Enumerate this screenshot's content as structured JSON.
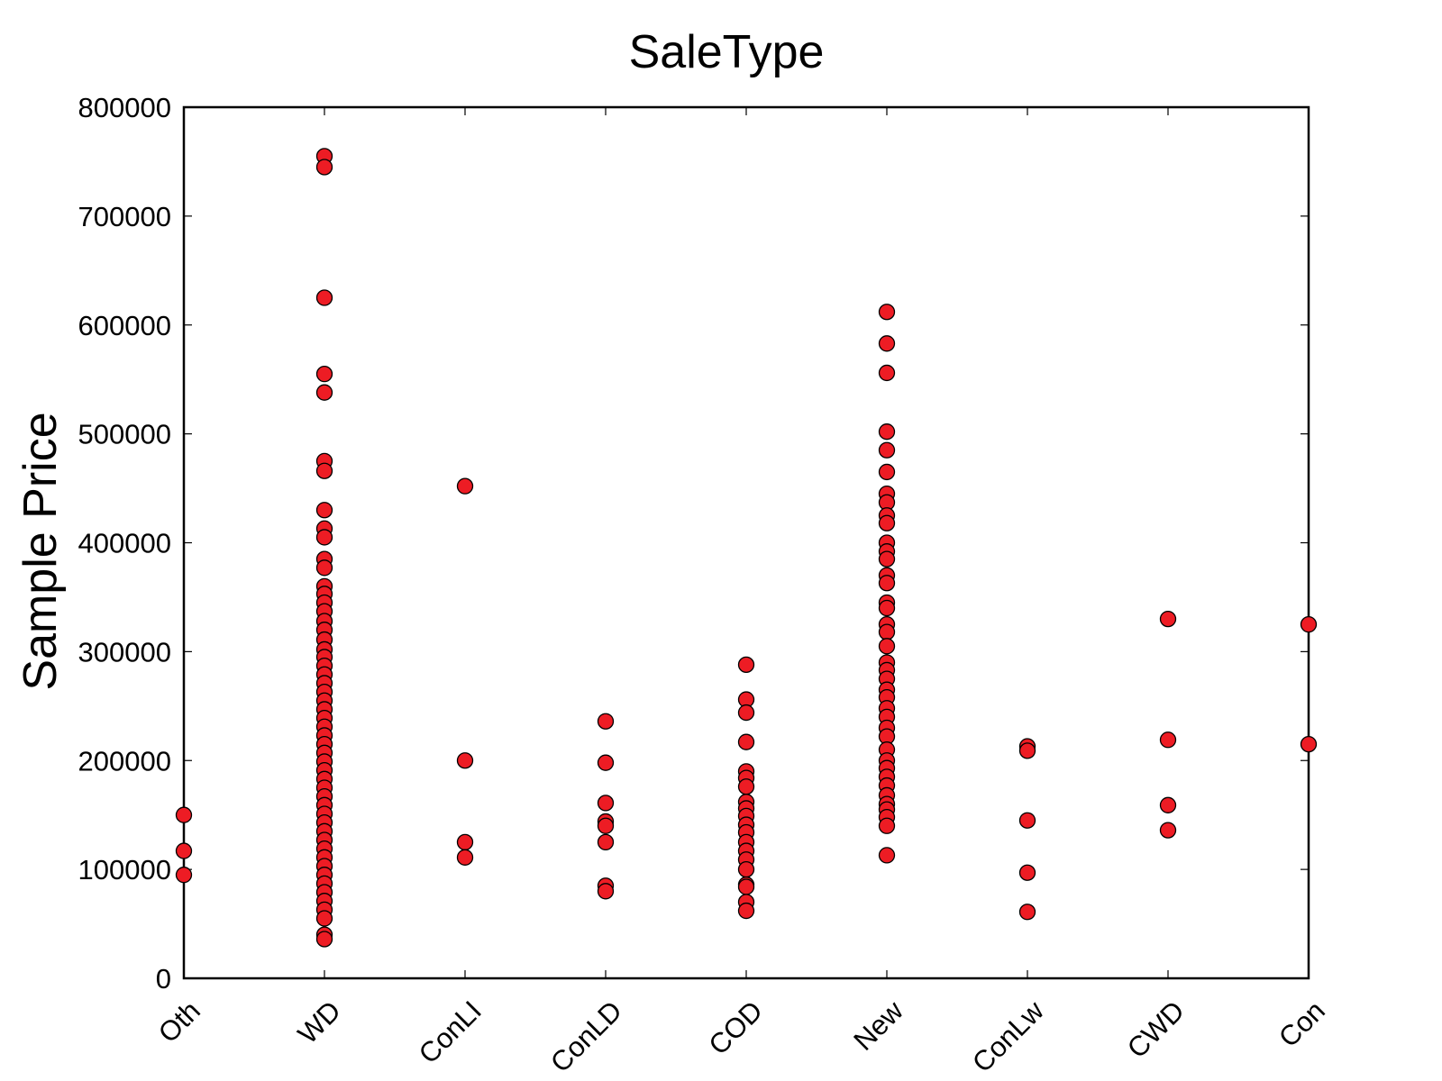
{
  "chart_data": {
    "type": "scatter",
    "title": "SaleType",
    "xlabel": "",
    "ylabel": "Sample Price",
    "ylim": [
      0,
      800000
    ],
    "yticks": [
      0,
      100000,
      200000,
      300000,
      400000,
      500000,
      600000,
      700000,
      800000
    ],
    "grid": false,
    "legend": "none",
    "marker_color": "#ed1c24",
    "marker_edge_color": "#000000",
    "categories": [
      "Oth",
      "WD",
      "ConLI",
      "ConLD",
      "COD",
      "New",
      "ConLw",
      "CWD",
      "Con"
    ],
    "series": [
      {
        "points": [
          {
            "x": "Oth",
            "y": 150000
          },
          {
            "x": "Oth",
            "y": 117000
          },
          {
            "x": "Oth",
            "y": 95000
          },
          {
            "x": "WD",
            "y": 755000
          },
          {
            "x": "WD",
            "y": 745000
          },
          {
            "x": "WD",
            "y": 625000
          },
          {
            "x": "WD",
            "y": 555000
          },
          {
            "x": "WD",
            "y": 538000
          },
          {
            "x": "WD",
            "y": 475000
          },
          {
            "x": "WD",
            "y": 466000
          },
          {
            "x": "WD",
            "y": 430000
          },
          {
            "x": "WD",
            "y": 413000
          },
          {
            "x": "WD",
            "y": 405000
          },
          {
            "x": "WD",
            "y": 385000
          },
          {
            "x": "WD",
            "y": 377000
          },
          {
            "x": "WD",
            "y": 360000
          },
          {
            "x": "WD",
            "y": 353000
          },
          {
            "x": "WD",
            "y": 345000
          },
          {
            "x": "WD",
            "y": 337000
          },
          {
            "x": "WD",
            "y": 328000
          },
          {
            "x": "WD",
            "y": 320000
          },
          {
            "x": "WD",
            "y": 311000
          },
          {
            "x": "WD",
            "y": 302000
          },
          {
            "x": "WD",
            "y": 295000
          },
          {
            "x": "WD",
            "y": 287000
          },
          {
            "x": "WD",
            "y": 279000
          },
          {
            "x": "WD",
            "y": 271000
          },
          {
            "x": "WD",
            "y": 263000
          },
          {
            "x": "WD",
            "y": 255000
          },
          {
            "x": "WD",
            "y": 247000
          },
          {
            "x": "WD",
            "y": 239000
          },
          {
            "x": "WD",
            "y": 231000
          },
          {
            "x": "WD",
            "y": 223000
          },
          {
            "x": "WD",
            "y": 215000
          },
          {
            "x": "WD",
            "y": 207000
          },
          {
            "x": "WD",
            "y": 199000
          },
          {
            "x": "WD",
            "y": 191000
          },
          {
            "x": "WD",
            "y": 183000
          },
          {
            "x": "WD",
            "y": 175000
          },
          {
            "x": "WD",
            "y": 167000
          },
          {
            "x": "WD",
            "y": 159000
          },
          {
            "x": "WD",
            "y": 151000
          },
          {
            "x": "WD",
            "y": 143000
          },
          {
            "x": "WD",
            "y": 135000
          },
          {
            "x": "WD",
            "y": 127000
          },
          {
            "x": "WD",
            "y": 119000
          },
          {
            "x": "WD",
            "y": 111000
          },
          {
            "x": "WD",
            "y": 103000
          },
          {
            "x": "WD",
            "y": 95000
          },
          {
            "x": "WD",
            "y": 87000
          },
          {
            "x": "WD",
            "y": 79000
          },
          {
            "x": "WD",
            "y": 71000
          },
          {
            "x": "WD",
            "y": 63000
          },
          {
            "x": "WD",
            "y": 55000
          },
          {
            "x": "WD",
            "y": 40000
          },
          {
            "x": "WD",
            "y": 36000
          },
          {
            "x": "ConLI",
            "y": 452000
          },
          {
            "x": "ConLI",
            "y": 200000
          },
          {
            "x": "ConLI",
            "y": 125000
          },
          {
            "x": "ConLI",
            "y": 111000
          },
          {
            "x": "ConLD",
            "y": 236000
          },
          {
            "x": "ConLD",
            "y": 198000
          },
          {
            "x": "ConLD",
            "y": 161000
          },
          {
            "x": "ConLD",
            "y": 144000
          },
          {
            "x": "ConLD",
            "y": 140000
          },
          {
            "x": "ConLD",
            "y": 125000
          },
          {
            "x": "ConLD",
            "y": 85000
          },
          {
            "x": "ConLD",
            "y": 80000
          },
          {
            "x": "COD",
            "y": 288000
          },
          {
            "x": "COD",
            "y": 256000
          },
          {
            "x": "COD",
            "y": 244000
          },
          {
            "x": "COD",
            "y": 217000
          },
          {
            "x": "COD",
            "y": 190000
          },
          {
            "x": "COD",
            "y": 184000
          },
          {
            "x": "COD",
            "y": 176000
          },
          {
            "x": "COD",
            "y": 162000
          },
          {
            "x": "COD",
            "y": 156000
          },
          {
            "x": "COD",
            "y": 149000
          },
          {
            "x": "COD",
            "y": 141000
          },
          {
            "x": "COD",
            "y": 134000
          },
          {
            "x": "COD",
            "y": 125000
          },
          {
            "x": "COD",
            "y": 117000
          },
          {
            "x": "COD",
            "y": 109000
          },
          {
            "x": "COD",
            "y": 100000
          },
          {
            "x": "COD",
            "y": 86000
          },
          {
            "x": "COD",
            "y": 84000
          },
          {
            "x": "COD",
            "y": 70000
          },
          {
            "x": "COD",
            "y": 62000
          },
          {
            "x": "New",
            "y": 612000
          },
          {
            "x": "New",
            "y": 583000
          },
          {
            "x": "New",
            "y": 556000
          },
          {
            "x": "New",
            "y": 502000
          },
          {
            "x": "New",
            "y": 485000
          },
          {
            "x": "New",
            "y": 465000
          },
          {
            "x": "New",
            "y": 445000
          },
          {
            "x": "New",
            "y": 437000
          },
          {
            "x": "New",
            "y": 425000
          },
          {
            "x": "New",
            "y": 418000
          },
          {
            "x": "New",
            "y": 400000
          },
          {
            "x": "New",
            "y": 392000
          },
          {
            "x": "New",
            "y": 385000
          },
          {
            "x": "New",
            "y": 370000
          },
          {
            "x": "New",
            "y": 363000
          },
          {
            "x": "New",
            "y": 345000
          },
          {
            "x": "New",
            "y": 340000
          },
          {
            "x": "New",
            "y": 325000
          },
          {
            "x": "New",
            "y": 318000
          },
          {
            "x": "New",
            "y": 305000
          },
          {
            "x": "New",
            "y": 290000
          },
          {
            "x": "New",
            "y": 283000
          },
          {
            "x": "New",
            "y": 275000
          },
          {
            "x": "New",
            "y": 265000
          },
          {
            "x": "New",
            "y": 258000
          },
          {
            "x": "New",
            "y": 248000
          },
          {
            "x": "New",
            "y": 240000
          },
          {
            "x": "New",
            "y": 230000
          },
          {
            "x": "New",
            "y": 222000
          },
          {
            "x": "New",
            "y": 210000
          },
          {
            "x": "New",
            "y": 200000
          },
          {
            "x": "New",
            "y": 193000
          },
          {
            "x": "New",
            "y": 185000
          },
          {
            "x": "New",
            "y": 177000
          },
          {
            "x": "New",
            "y": 168000
          },
          {
            "x": "New",
            "y": 160000
          },
          {
            "x": "New",
            "y": 155000
          },
          {
            "x": "New",
            "y": 148000
          },
          {
            "x": "New",
            "y": 140000
          },
          {
            "x": "New",
            "y": 113000
          },
          {
            "x": "ConLw",
            "y": 213000
          },
          {
            "x": "ConLw",
            "y": 209000
          },
          {
            "x": "ConLw",
            "y": 145000
          },
          {
            "x": "ConLw",
            "y": 97000
          },
          {
            "x": "ConLw",
            "y": 61000
          },
          {
            "x": "CWD",
            "y": 330000
          },
          {
            "x": "CWD",
            "y": 219000
          },
          {
            "x": "CWD",
            "y": 159000
          },
          {
            "x": "CWD",
            "y": 136000
          },
          {
            "x": "Con",
            "y": 325000
          },
          {
            "x": "Con",
            "y": 215000
          }
        ]
      }
    ]
  }
}
